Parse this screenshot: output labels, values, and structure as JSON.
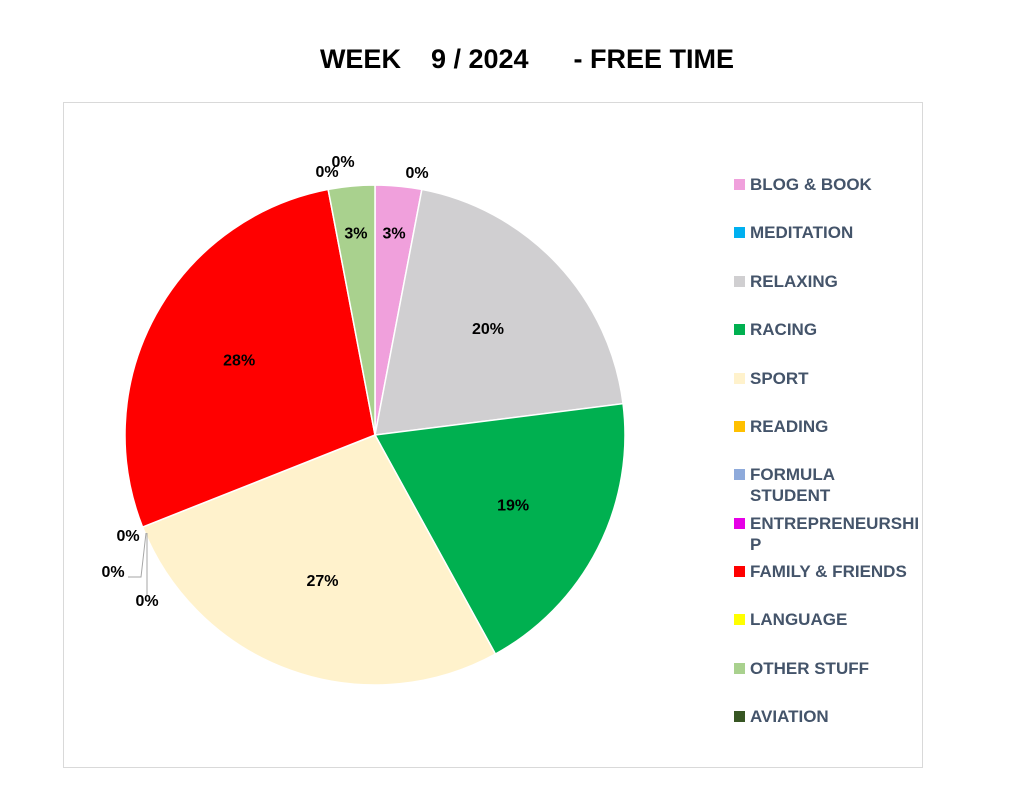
{
  "chart_data": {
    "type": "pie",
    "title": "WEEK    9 / 2024      - FREE TIME",
    "legend_position": "right",
    "slices": [
      {
        "label": "BLOG & BOOK",
        "value": 3,
        "display": "3%",
        "color": "#f0a0dc"
      },
      {
        "label": "MEDITATION",
        "value": 0,
        "display": "0%",
        "color": "#00b0f0"
      },
      {
        "label": "RELAXING",
        "value": 20,
        "display": "20%",
        "color": "#d0cfd1"
      },
      {
        "label": "RACING",
        "value": 19,
        "display": "19%",
        "color": "#00b050"
      },
      {
        "label": "SPORT",
        "value": 27,
        "display": "27%",
        "color": "#fff2cc"
      },
      {
        "label": "READING",
        "value": 0,
        "display": "0%",
        "color": "#ffc000"
      },
      {
        "label": "FORMULA STUDENT",
        "value": 0,
        "display": "0%",
        "color": "#8eaadb"
      },
      {
        "label": "ENTREPRENEURSHIP",
        "value": 0,
        "display": "0%",
        "color": "#e600e6"
      },
      {
        "label": "FAMILY & FRIENDS",
        "value": 28,
        "display": "28%",
        "color": "#ff0000"
      },
      {
        "label": "LANGUAGE",
        "value": 0,
        "display": "0%",
        "color": "#ffff00"
      },
      {
        "label": "OTHER STUFF",
        "value": 3,
        "display": "3%",
        "color": "#a9d18e"
      },
      {
        "label": "AVIATION",
        "value": 0,
        "display": "0%",
        "color": "#375623"
      }
    ]
  }
}
